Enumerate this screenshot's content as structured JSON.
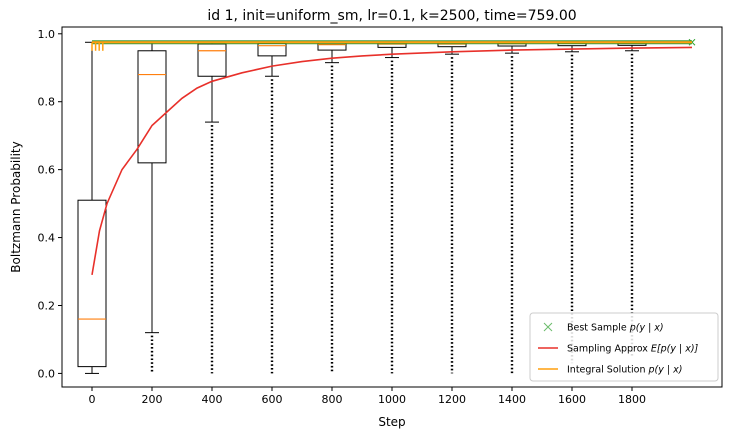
{
  "chart_data": {
    "type": "box",
    "title": "id 1, init=uniform_sm, lr=0.1, k=2500, time=759.00",
    "xlabel": "Step",
    "ylabel": "Boltzmann Probability",
    "xlim": [
      -100,
      2100
    ],
    "ylim": [
      -0.04,
      1.02
    ],
    "x_ticks": [
      0,
      200,
      400,
      600,
      800,
      1000,
      1200,
      1400,
      1600,
      1800
    ],
    "y_ticks": [
      0.0,
      0.2,
      0.4,
      0.6,
      0.8,
      1.0
    ],
    "y_tick_labels": [
      "0.0",
      "0.2",
      "0.4",
      "0.6",
      "0.8",
      "1.0"
    ],
    "boxes": [
      {
        "step": 0,
        "whisker_low": 0.0,
        "q1": 0.02,
        "median": 0.16,
        "q3": 0.51,
        "whisker_high": 0.975,
        "outliers_min": null
      },
      {
        "step": 200,
        "whisker_low": 0.12,
        "q1": 0.62,
        "median": 0.88,
        "q3": 0.95,
        "whisker_high": 0.975,
        "outliers_min": 0.0
      },
      {
        "step": 400,
        "whisker_low": 0.74,
        "q1": 0.875,
        "median": 0.95,
        "q3": 0.97,
        "whisker_high": 0.975,
        "outliers_min": 0.0
      },
      {
        "step": 600,
        "whisker_low": 0.875,
        "q1": 0.935,
        "median": 0.965,
        "q3": 0.972,
        "whisker_high": 0.975,
        "outliers_min": 0.0
      },
      {
        "step": 800,
        "whisker_low": 0.915,
        "q1": 0.952,
        "median": 0.968,
        "q3": 0.974,
        "whisker_high": 0.975,
        "outliers_min": 0.0
      },
      {
        "step": 1000,
        "whisker_low": 0.93,
        "q1": 0.96,
        "median": 0.97,
        "q3": 0.975,
        "whisker_high": 0.976,
        "outliers_min": 0.0
      },
      {
        "step": 1200,
        "whisker_low": 0.94,
        "q1": 0.962,
        "median": 0.97,
        "q3": 0.975,
        "whisker_high": 0.976,
        "outliers_min": 0.0
      },
      {
        "step": 1400,
        "whisker_low": 0.943,
        "q1": 0.964,
        "median": 0.971,
        "q3": 0.975,
        "whisker_high": 0.976,
        "outliers_min": 0.0
      },
      {
        "step": 1600,
        "whisker_low": 0.947,
        "q1": 0.965,
        "median": 0.972,
        "q3": 0.975,
        "whisker_high": 0.976,
        "outliers_min": 0.03
      },
      {
        "step": 1800,
        "whisker_low": 0.95,
        "q1": 0.966,
        "median": 0.972,
        "q3": 0.975,
        "whisker_high": 0.976,
        "outliers_min": 0.05
      }
    ],
    "series": [
      {
        "name": "Best Sample $p(y \\mid x)$",
        "kind": "markers",
        "marker": "x",
        "color": "#2ca02c",
        "x": [
          0,
          2000
        ],
        "value": 0.975
      },
      {
        "name": "Sampling Approx $E[p(y \\mid x)]$",
        "kind": "line",
        "color": "#e8302a",
        "x": [
          0,
          25,
          50,
          100,
          150,
          200,
          250,
          300,
          350,
          400,
          500,
          600,
          700,
          800,
          900,
          1000,
          1200,
          1400,
          1600,
          1800,
          2000
        ],
        "y": [
          0.29,
          0.42,
          0.5,
          0.6,
          0.66,
          0.73,
          0.77,
          0.81,
          0.84,
          0.86,
          0.885,
          0.905,
          0.918,
          0.928,
          0.935,
          0.94,
          0.947,
          0.952,
          0.955,
          0.958,
          0.96
        ]
      },
      {
        "name": "Integral Solution $p(y \\mid x)$",
        "kind": "line",
        "color": "#ff9f0f",
        "x": [
          0,
          2000
        ],
        "value": 0.975
      }
    ],
    "legend": {
      "placement": "lower-right",
      "entries": [
        {
          "label_prefix": "Best Sample ",
          "math": "p(y | x)",
          "color": "#2ca02c",
          "kind": "marker"
        },
        {
          "label_prefix": "Sampling Approx ",
          "math": "E[p(y | x)]",
          "color": "#e8302a",
          "kind": "line"
        },
        {
          "label_prefix": "Integral Solution ",
          "math": "p(y | x)",
          "color": "#ff9f0f",
          "kind": "line"
        }
      ]
    },
    "grid": false
  }
}
